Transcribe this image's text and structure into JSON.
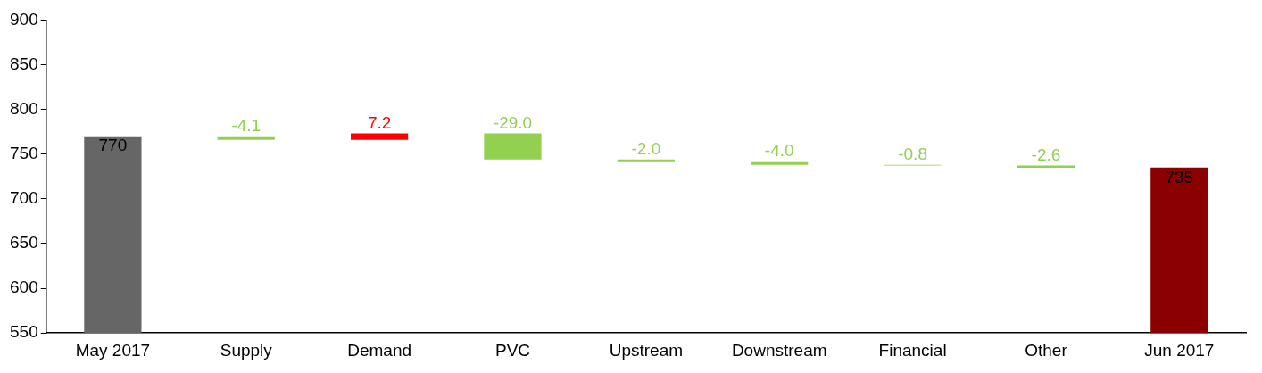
{
  "chart_data": {
    "type": "bar",
    "categories": [
      "May 2017",
      "Supply",
      "Demand",
      "PVC",
      "Upstream",
      "Downstream",
      "Financial",
      "Other",
      "Jun 2017"
    ],
    "values": [
      770,
      -4.1,
      7.2,
      -29.0,
      -2.0,
      -4.0,
      -0.8,
      -2.6,
      735
    ],
    "base": [
      null,
      770,
      765.9,
      773.1,
      744.1,
      742.1,
      738.1,
      737.3,
      null
    ],
    "colors": [
      "#666666",
      "#92d050",
      "#ff0000",
      "#92d050",
      "#92d050",
      "#92d050",
      "#92d050",
      "#92d050",
      "#8b0000"
    ],
    "value_labels": [
      "770",
      "-4.1",
      "7.2",
      "-29.0",
      "-2.0",
      "-4.0",
      "-0.8",
      "-2.6",
      "735"
    ],
    "ylim": [
      550,
      900
    ],
    "yticks": [
      550,
      600,
      650,
      700,
      750,
      800,
      850,
      900
    ],
    "grid": false,
    "legend": false
  }
}
